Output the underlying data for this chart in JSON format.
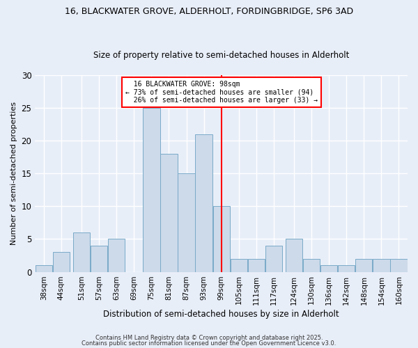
{
  "title_line1": "16, BLACKWATER GROVE, ALDERHOLT, FORDINGBRIDGE, SP6 3AD",
  "title_line2": "Size of property relative to semi-detached houses in Alderholt",
  "xlabel": "Distribution of semi-detached houses by size in Alderholt",
  "ylabel": "Number of semi-detached properties",
  "bins": [
    "38sqm",
    "44sqm",
    "51sqm",
    "57sqm",
    "63sqm",
    "69sqm",
    "75sqm",
    "81sqm",
    "87sqm",
    "93sqm",
    "99sqm",
    "105sqm",
    "111sqm",
    "117sqm",
    "124sqm",
    "130sqm",
    "136sqm",
    "142sqm",
    "148sqm",
    "154sqm",
    "160sqm"
  ],
  "values": [
    1,
    3,
    6,
    4,
    5,
    0,
    25,
    18,
    15,
    21,
    10,
    2,
    2,
    4,
    5,
    2,
    1,
    1,
    2,
    2,
    2
  ],
  "bar_color": "#ccdaea",
  "bar_edge_color": "#7aaac8",
  "property_label": "16 BLACKWATER GROVE: 98sqm",
  "pct_smaller": 73,
  "pct_smaller_count": 94,
  "pct_larger": 26,
  "pct_larger_count": 33,
  "vline_color": "red",
  "ylim": [
    0,
    30
  ],
  "yticks": [
    0,
    5,
    10,
    15,
    20,
    25,
    30
  ],
  "background_color": "#e8eef8",
  "grid_color": "white",
  "footer1": "Contains HM Land Registry data © Crown copyright and database right 2025.",
  "footer2": "Contains public sector information licensed under the Open Government Licence v3.0."
}
